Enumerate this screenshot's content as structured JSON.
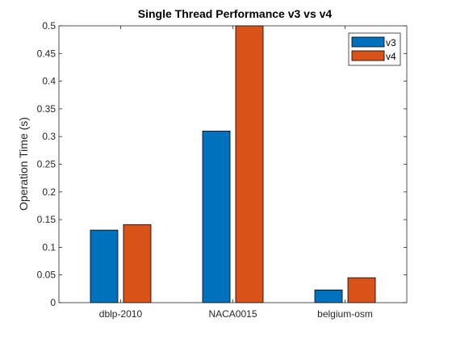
{
  "chart_data": {
    "type": "bar",
    "title": "Single Thread Performance v3 vs v4",
    "xlabel": "",
    "ylabel": "Operation Time (s)",
    "categories": [
      "dblp-2010",
      "NACA0015",
      "belgium-osm"
    ],
    "series": [
      {
        "name": "v3",
        "values": [
          0.131,
          0.31,
          0.023
        ],
        "color": "#0072BD"
      },
      {
        "name": "v4",
        "values": [
          0.141,
          0.5,
          0.045
        ],
        "color": "#D95319"
      }
    ],
    "ylim": [
      0,
      0.5
    ],
    "yticks": [
      0,
      0.05,
      0.1,
      0.15,
      0.2,
      0.25,
      0.3,
      0.35,
      0.4,
      0.45,
      0.5
    ],
    "ytick_labels": [
      "0",
      "0.05",
      "0.1",
      "0.15",
      "0.2",
      "0.25",
      "0.3",
      "0.35",
      "0.4",
      "0.45",
      "0.5"
    ],
    "grid": false,
    "legend_position": "top-right"
  }
}
